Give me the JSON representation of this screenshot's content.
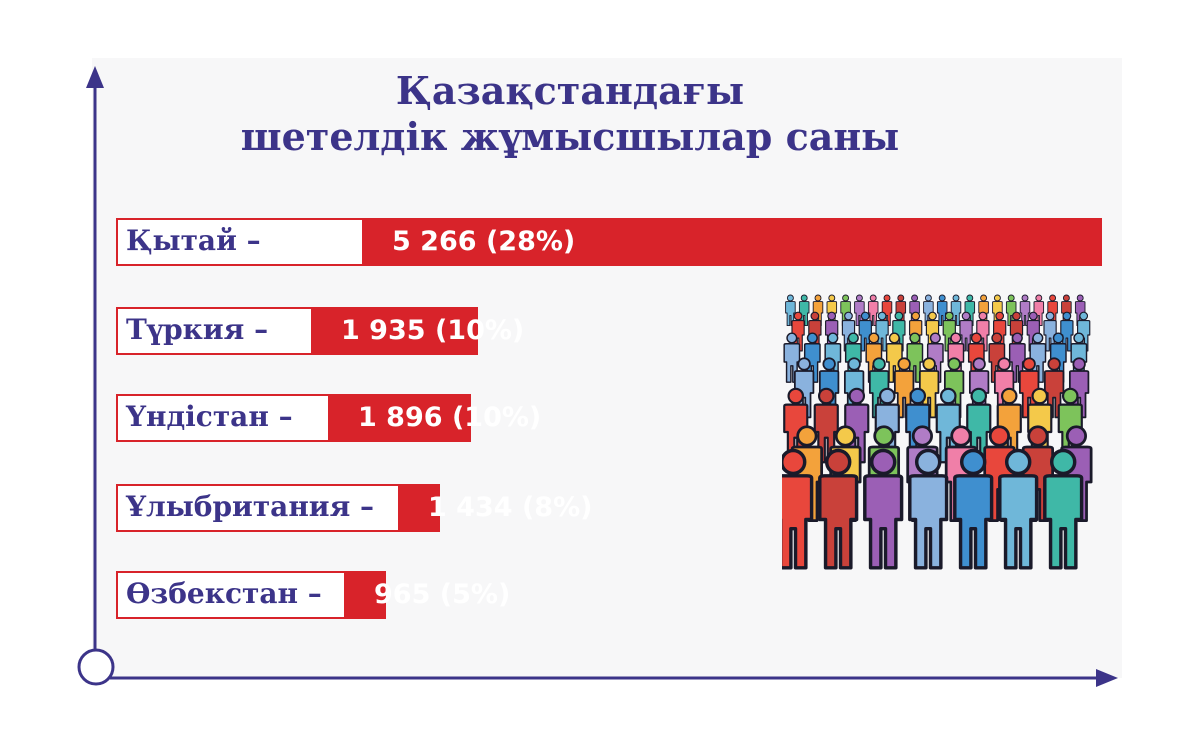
{
  "chart_data": {
    "type": "bar",
    "title": "Қазақстандағы шетелдік жұмысшылар саны",
    "title_lines": [
      "Қазақстандағы",
      "шетелдік жұмысшылар саны"
    ],
    "orientation": "horizontal",
    "categories": [
      "Қытай –",
      "Түркия –",
      "Үндістан –",
      "Ұлыбритания –",
      "Өзбекстан –"
    ],
    "values": [
      5266,
      1935,
      1896,
      1434,
      965
    ],
    "value_labels": [
      "5 266 (28%)",
      "1 935 (10%)",
      "1 896 (10%)",
      "1 434 (8%)",
      "965 (5%)"
    ],
    "percentages": [
      28,
      10,
      10,
      8,
      5
    ],
    "bar_color": "#d8232a",
    "text_color": "#3c3489",
    "grid": false,
    "legend": "none"
  },
  "illustration": {
    "icon": "crowd-of-people-icon"
  }
}
